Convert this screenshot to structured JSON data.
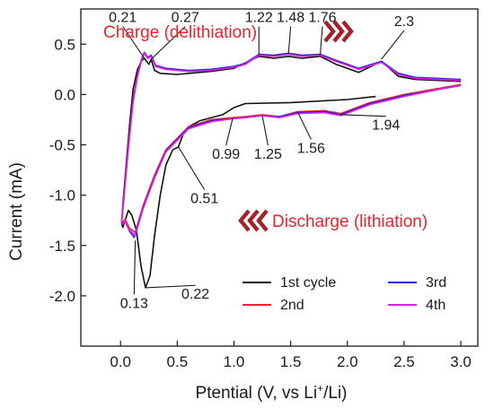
{
  "chart_data": {
    "type": "line",
    "xlabel": "Ptential (V, vs Li",
    "xlabel_sup": "+",
    "xlabel_tail": "/Li)",
    "ylabel": "Current (mA)",
    "xlim": [
      -0.35,
      3.15
    ],
    "ylim": [
      -2.5,
      0.85
    ],
    "x_ticks": [
      0.0,
      0.5,
      1.0,
      1.5,
      2.0,
      2.5,
      3.0
    ],
    "x_tick_labels": [
      "0.0",
      "0.5",
      "1.0",
      "1.5",
      "2.0",
      "2.5",
      "3.0"
    ],
    "y_ticks": [
      0.5,
      0.0,
      -0.5,
      -1.0,
      -1.5,
      -2.0
    ],
    "y_tick_labels": [
      "0.5",
      "0.0",
      "-0.5",
      "-1.0",
      "-1.5",
      "-2.0"
    ],
    "grid": false,
    "legend_position": "bottom-right",
    "annotations": {
      "charge": "Charge (delithiation)",
      "discharge": "Discharge (lithiation)",
      "color": "#e8232b",
      "arrow_color": "#a3232b"
    },
    "peak_labels": [
      {
        "text": "0.21",
        "x": 0.21,
        "y": 0.36,
        "tx": 0.02,
        "ty": 0.72
      },
      {
        "text": "0.27",
        "x": 0.27,
        "y": 0.35,
        "tx": 0.57,
        "ty": 0.72
      },
      {
        "text": "1.22",
        "x": 1.22,
        "y": 0.39,
        "tx": 1.22,
        "ty": 0.72
      },
      {
        "text": "1.48",
        "x": 1.48,
        "y": 0.4,
        "tx": 1.5,
        "ty": 0.72
      },
      {
        "text": "1.76",
        "x": 1.76,
        "y": 0.39,
        "tx": 1.78,
        "ty": 0.72
      },
      {
        "text": "2.3",
        "x": 2.3,
        "y": 0.35,
        "tx": 2.5,
        "ty": 0.68
      },
      {
        "text": "0.99",
        "x": 0.99,
        "y": -0.23,
        "tx": 0.93,
        "ty": -0.64
      },
      {
        "text": "1.25",
        "x": 1.25,
        "y": -0.21,
        "tx": 1.3,
        "ty": -0.64
      },
      {
        "text": "1.56",
        "x": 1.56,
        "y": -0.17,
        "tx": 1.68,
        "ty": -0.58
      },
      {
        "text": "1.94",
        "x": 1.94,
        "y": -0.2,
        "tx": 2.34,
        "ty": -0.35
      },
      {
        "text": "0.51",
        "x": 0.51,
        "y": -0.52,
        "tx": 0.74,
        "ty": -1.08
      },
      {
        "text": "0.13",
        "x": 0.13,
        "y": -1.45,
        "tx": 0.12,
        "ty": -2.12
      },
      {
        "text": "0.22",
        "x": 0.22,
        "y": -1.92,
        "tx": 0.66,
        "ty": -2.03
      }
    ],
    "series": [
      {
        "name": "1st cycle",
        "color": "#111111",
        "x": [
          2.25,
          2.0,
          1.5,
          1.1,
          1.0,
          0.9,
          0.7,
          0.6,
          0.55,
          0.51,
          0.46,
          0.4,
          0.35,
          0.3,
          0.26,
          0.22,
          0.18,
          0.14,
          0.1,
          0.07,
          0.04,
          0.02,
          0.01,
          0.02,
          0.05,
          0.08,
          0.11,
          0.15,
          0.19,
          0.21,
          0.23,
          0.25,
          0.27,
          0.3,
          0.35,
          0.5,
          0.8,
          1.0,
          1.22,
          1.35,
          1.48,
          1.6,
          1.76,
          1.9,
          2.1,
          2.3,
          2.45,
          2.6,
          2.8,
          3.0
        ],
        "y": [
          -0.02,
          -0.05,
          -0.08,
          -0.09,
          -0.13,
          -0.2,
          -0.26,
          -0.32,
          -0.4,
          -0.52,
          -0.55,
          -0.7,
          -1.0,
          -1.4,
          -1.8,
          -1.92,
          -1.7,
          -1.35,
          -1.2,
          -1.15,
          -1.25,
          -1.32,
          -1.28,
          -1.1,
          -0.7,
          -0.3,
          0.05,
          0.25,
          0.34,
          0.36,
          0.33,
          0.3,
          0.35,
          0.24,
          0.21,
          0.2,
          0.23,
          0.26,
          0.38,
          0.36,
          0.38,
          0.36,
          0.38,
          0.3,
          0.22,
          0.33,
          0.18,
          0.15,
          0.14,
          0.13
        ]
      },
      {
        "name": "2nd",
        "color": "#e8232b",
        "x": [
          3.0,
          2.8,
          2.5,
          2.2,
          1.94,
          1.8,
          1.56,
          1.4,
          1.25,
          1.1,
          0.99,
          0.8,
          0.6,
          0.4,
          0.3,
          0.2,
          0.13,
          0.08,
          0.04,
          0.02,
          0.01,
          0.03,
          0.07,
          0.11,
          0.15,
          0.19,
          0.21,
          0.24,
          0.27,
          0.31,
          0.4,
          0.6,
          0.8,
          1.0,
          1.1,
          1.22,
          1.35,
          1.48,
          1.6,
          1.76,
          1.9,
          2.1,
          2.3,
          2.45,
          2.6,
          2.8,
          3.0
        ],
        "y": [
          0.1,
          0.06,
          0.0,
          -0.08,
          -0.19,
          -0.16,
          -0.17,
          -0.22,
          -0.2,
          -0.22,
          -0.23,
          -0.25,
          -0.32,
          -0.55,
          -0.8,
          -1.1,
          -1.37,
          -1.33,
          -1.24,
          -1.27,
          -1.25,
          -1.0,
          -0.5,
          -0.05,
          0.2,
          0.36,
          0.41,
          0.36,
          0.38,
          0.28,
          0.25,
          0.23,
          0.24,
          0.27,
          0.3,
          0.39,
          0.38,
          0.4,
          0.38,
          0.39,
          0.33,
          0.25,
          0.32,
          0.2,
          0.16,
          0.15,
          0.14
        ]
      },
      {
        "name": "3rd",
        "color": "#2525e0",
        "x": [
          3.0,
          2.8,
          2.5,
          2.2,
          1.94,
          1.8,
          1.56,
          1.4,
          1.25,
          1.1,
          0.99,
          0.8,
          0.6,
          0.4,
          0.3,
          0.2,
          0.12,
          0.08,
          0.04,
          0.02,
          0.01,
          0.03,
          0.07,
          0.11,
          0.15,
          0.19,
          0.21,
          0.24,
          0.27,
          0.31,
          0.4,
          0.6,
          0.8,
          1.0,
          1.1,
          1.22,
          1.35,
          1.48,
          1.6,
          1.76,
          1.9,
          2.1,
          2.3,
          2.45,
          2.6,
          2.8,
          3.0
        ],
        "y": [
          0.09,
          0.05,
          -0.01,
          -0.09,
          -0.2,
          -0.17,
          -0.18,
          -0.22,
          -0.21,
          -0.23,
          -0.24,
          -0.26,
          -0.33,
          -0.56,
          -0.82,
          -1.12,
          -1.42,
          -1.36,
          -1.26,
          -1.29,
          -1.26,
          -1.02,
          -0.52,
          -0.07,
          0.19,
          0.37,
          0.42,
          0.37,
          0.39,
          0.29,
          0.26,
          0.24,
          0.25,
          0.28,
          0.31,
          0.4,
          0.39,
          0.41,
          0.39,
          0.4,
          0.34,
          0.26,
          0.33,
          0.21,
          0.17,
          0.16,
          0.15
        ]
      },
      {
        "name": "4th",
        "color": "#e020e0",
        "x": [
          3.0,
          2.8,
          2.5,
          2.2,
          1.94,
          1.8,
          1.56,
          1.4,
          1.25,
          1.1,
          0.99,
          0.8,
          0.6,
          0.4,
          0.3,
          0.2,
          0.13,
          0.08,
          0.04,
          0.02,
          0.01,
          0.03,
          0.07,
          0.11,
          0.15,
          0.19,
          0.21,
          0.24,
          0.27,
          0.31,
          0.4,
          0.6,
          0.8,
          1.0,
          1.1,
          1.22,
          1.35,
          1.48,
          1.6,
          1.76,
          1.9,
          2.1,
          2.3,
          2.45,
          2.6,
          2.8,
          3.0
        ],
        "y": [
          0.09,
          0.05,
          -0.02,
          -0.1,
          -0.21,
          -0.18,
          -0.19,
          -0.23,
          -0.21,
          -0.23,
          -0.24,
          -0.27,
          -0.34,
          -0.57,
          -0.83,
          -1.13,
          -1.4,
          -1.35,
          -1.26,
          -1.29,
          -1.27,
          -1.03,
          -0.53,
          -0.08,
          0.18,
          0.36,
          0.41,
          0.36,
          0.38,
          0.28,
          0.25,
          0.23,
          0.24,
          0.27,
          0.3,
          0.39,
          0.38,
          0.4,
          0.38,
          0.39,
          0.33,
          0.25,
          0.32,
          0.2,
          0.16,
          0.15,
          0.14
        ]
      }
    ]
  }
}
